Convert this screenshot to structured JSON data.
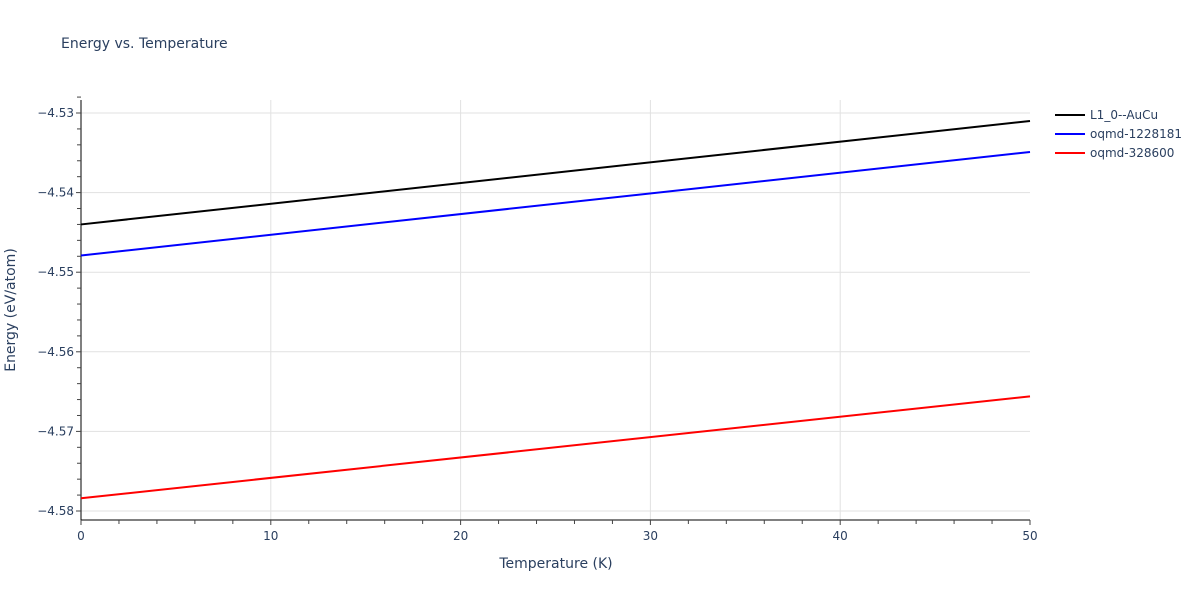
{
  "title": "Energy vs. Temperature",
  "chart_data": {
    "type": "line",
    "title": "Energy vs. Temperature",
    "xlabel": "Temperature (K)",
    "ylabel": "Energy (eV/atom)",
    "xlim": [
      0,
      50
    ],
    "ylim": [
      -4.581,
      -4.5285
    ],
    "grid": true,
    "legend_position": "right-top",
    "x_ticks": [
      "0",
      "10",
      "20",
      "30",
      "40",
      "50"
    ],
    "y_ticks": [
      "−4.53",
      "−4.54",
      "−4.55",
      "−4.56",
      "−4.57",
      "−4.58"
    ],
    "series": [
      {
        "name": "L1_0--AuCu",
        "color": "#000000",
        "x": [
          0,
          50
        ],
        "values": [
          -4.544,
          -4.531
        ]
      },
      {
        "name": "oqmd-1228181",
        "color": "#0000ff",
        "x": [
          0,
          50
        ],
        "values": [
          -4.5479,
          -4.5349
        ]
      },
      {
        "name": "oqmd-328600",
        "color": "#ff0000",
        "x": [
          0,
          50
        ],
        "values": [
          -4.5784,
          -4.5656
        ]
      }
    ]
  }
}
